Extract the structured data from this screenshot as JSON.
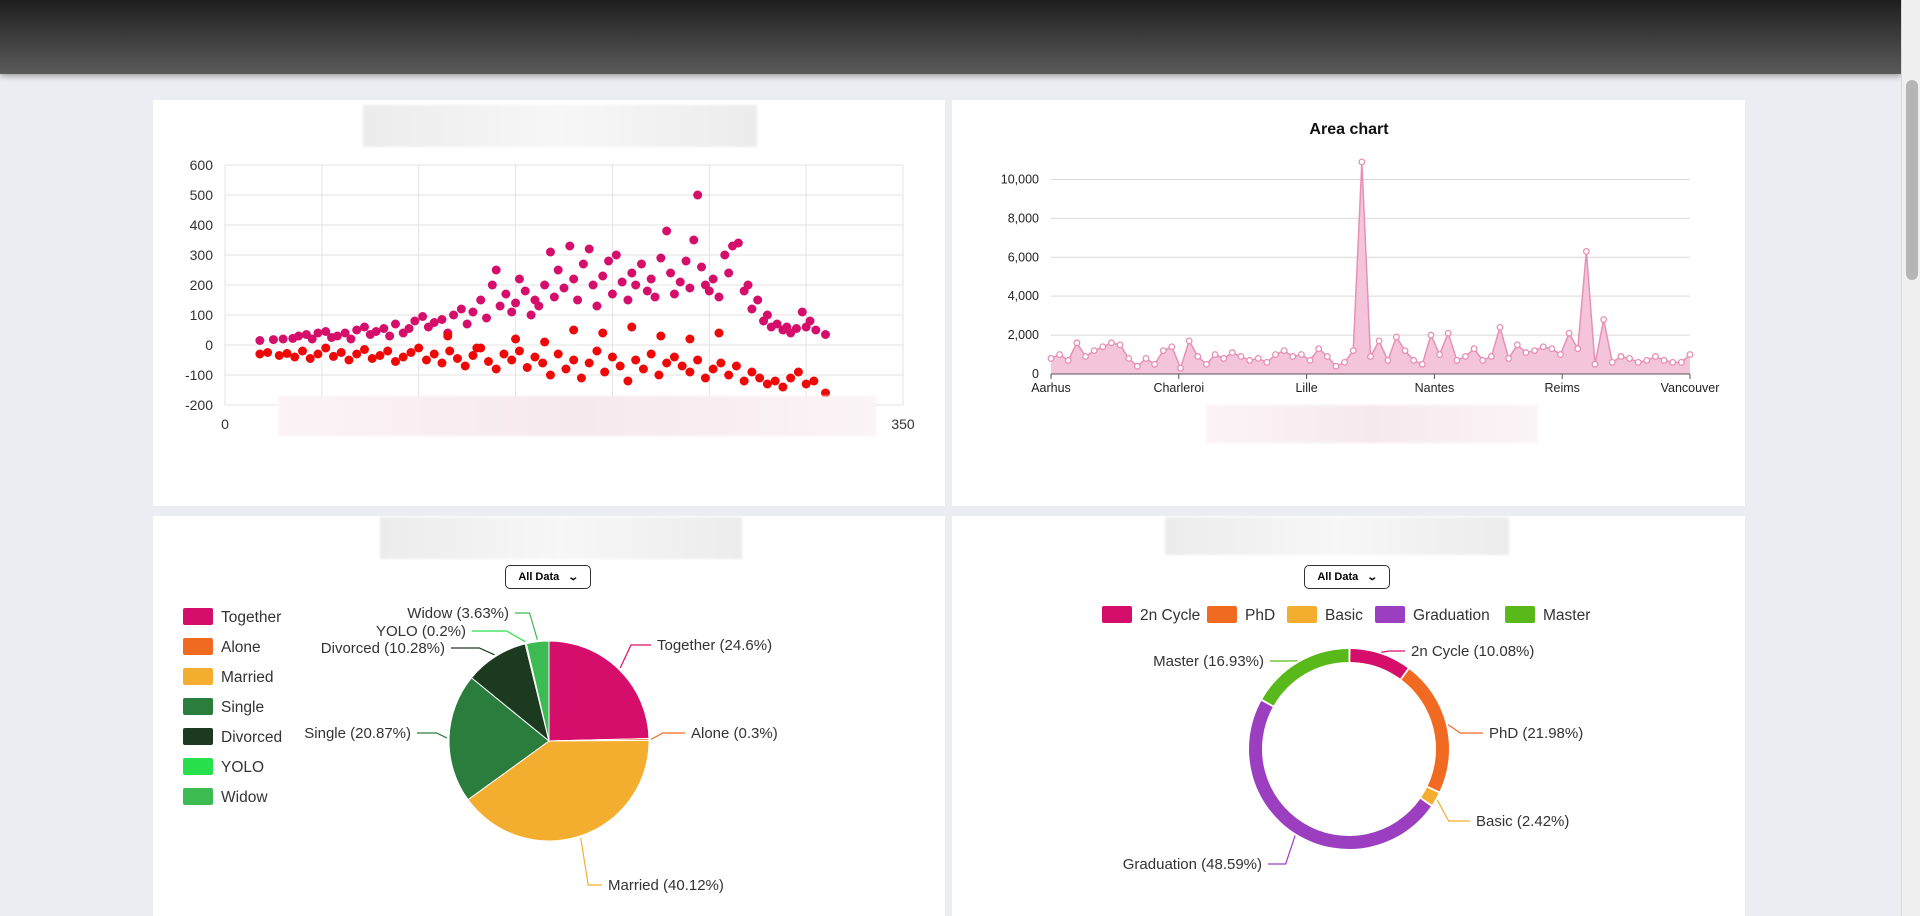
{
  "scatter": {
    "chart_data": {
      "type": "scatter",
      "title": "",
      "xlim": [
        0,
        350
      ],
      "ylim": [
        -200,
        600
      ],
      "x_ticks": [
        "0",
        "50",
        "100",
        "150",
        "200",
        "250",
        "300",
        "350"
      ],
      "y_ticks": [
        "600",
        "500",
        "400",
        "300",
        "200",
        "100",
        "0",
        "-100",
        "-200"
      ],
      "grid": true,
      "series": [
        {
          "color": "#d60e6b",
          "points": [
            [
              18,
              15
            ],
            [
              25,
              18
            ],
            [
              30,
              20
            ],
            [
              35,
              22
            ],
            [
              38,
              30
            ],
            [
              42,
              35
            ],
            [
              45,
              20
            ],
            [
              48,
              40
            ],
            [
              52,
              45
            ],
            [
              55,
              25
            ],
            [
              58,
              30
            ],
            [
              62,
              40
            ],
            [
              65,
              20
            ],
            [
              68,
              50
            ],
            [
              72,
              60
            ],
            [
              75,
              35
            ],
            [
              78,
              45
            ],
            [
              82,
              55
            ],
            [
              85,
              30
            ],
            [
              88,
              70
            ],
            [
              92,
              40
            ],
            [
              95,
              55
            ],
            [
              98,
              80
            ],
            [
              102,
              95
            ],
            [
              105,
              60
            ],
            [
              108,
              75
            ],
            [
              112,
              85
            ],
            [
              115,
              40
            ],
            [
              118,
              100
            ],
            [
              122,
              120
            ],
            [
              125,
              70
            ],
            [
              128,
              110
            ],
            [
              132,
              150
            ],
            [
              135,
              90
            ],
            [
              138,
              200
            ],
            [
              140,
              250
            ],
            [
              142,
              130
            ],
            [
              145,
              170
            ],
            [
              148,
              110
            ],
            [
              150,
              140
            ],
            [
              152,
              220
            ],
            [
              155,
              180
            ],
            [
              158,
              100
            ],
            [
              160,
              150
            ],
            [
              162,
              130
            ],
            [
              165,
              200
            ],
            [
              168,
              310
            ],
            [
              170,
              160
            ],
            [
              172,
              250
            ],
            [
              175,
              190
            ],
            [
              178,
              330
            ],
            [
              180,
              220
            ],
            [
              182,
              150
            ],
            [
              185,
              270
            ],
            [
              188,
              320
            ],
            [
              190,
              200
            ],
            [
              192,
              130
            ],
            [
              195,
              230
            ],
            [
              198,
              280
            ],
            [
              200,
              170
            ],
            [
              202,
              300
            ],
            [
              205,
              210
            ],
            [
              208,
              150
            ],
            [
              210,
              240
            ],
            [
              212,
              200
            ],
            [
              215,
              270
            ],
            [
              218,
              180
            ],
            [
              220,
              220
            ],
            [
              222,
              160
            ],
            [
              225,
              290
            ],
            [
              228,
              380
            ],
            [
              230,
              240
            ],
            [
              232,
              170
            ],
            [
              235,
              210
            ],
            [
              238,
              280
            ],
            [
              240,
              190
            ],
            [
              242,
              350
            ],
            [
              244,
              500
            ],
            [
              246,
              260
            ],
            [
              248,
              200
            ],
            [
              250,
              180
            ],
            [
              252,
              220
            ],
            [
              255,
              160
            ],
            [
              258,
              300
            ],
            [
              260,
              240
            ],
            [
              262,
              330
            ],
            [
              265,
              340
            ],
            [
              268,
              180
            ],
            [
              270,
              200
            ],
            [
              272,
              120
            ],
            [
              275,
              150
            ],
            [
              278,
              80
            ],
            [
              280,
              100
            ],
            [
              282,
              60
            ],
            [
              285,
              70
            ],
            [
              288,
              50
            ],
            [
              290,
              60
            ],
            [
              292,
              40
            ],
            [
              295,
              55
            ],
            [
              298,
              110
            ],
            [
              300,
              60
            ],
            [
              302,
              80
            ],
            [
              305,
              50
            ],
            [
              310,
              35
            ]
          ]
        },
        {
          "color": "#ef0808",
          "points": [
            [
              18,
              -30
            ],
            [
              22,
              -25
            ],
            [
              28,
              -35
            ],
            [
              32,
              -28
            ],
            [
              36,
              -40
            ],
            [
              40,
              -20
            ],
            [
              44,
              -45
            ],
            [
              48,
              -30
            ],
            [
              52,
              -10
            ],
            [
              56,
              -38
            ],
            [
              60,
              -25
            ],
            [
              64,
              -50
            ],
            [
              68,
              -30
            ],
            [
              72,
              -15
            ],
            [
              76,
              -45
            ],
            [
              80,
              -35
            ],
            [
              84,
              -20
            ],
            [
              88,
              -55
            ],
            [
              92,
              -40
            ],
            [
              96,
              -25
            ],
            [
              100,
              -10
            ],
            [
              104,
              -50
            ],
            [
              108,
              -30
            ],
            [
              112,
              -60
            ],
            [
              116,
              -20
            ],
            [
              120,
              -45
            ],
            [
              124,
              -70
            ],
            [
              128,
              -35
            ],
            [
              132,
              -10
            ],
            [
              136,
              -55
            ],
            [
              140,
              -80
            ],
            [
              144,
              -30
            ],
            [
              148,
              -50
            ],
            [
              152,
              -20
            ],
            [
              156,
              -75
            ],
            [
              160,
              -40
            ],
            [
              164,
              -60
            ],
            [
              168,
              -100
            ],
            [
              172,
              -30
            ],
            [
              176,
              -80
            ],
            [
              180,
              -50
            ],
            [
              184,
              -110
            ],
            [
              188,
              -60
            ],
            [
              192,
              -20
            ],
            [
              196,
              -90
            ],
            [
              200,
              -40
            ],
            [
              204,
              -70
            ],
            [
              208,
              -120
            ],
            [
              212,
              -50
            ],
            [
              216,
              -80
            ],
            [
              220,
              -30
            ],
            [
              224,
              -100
            ],
            [
              228,
              -60
            ],
            [
              232,
              -40
            ],
            [
              236,
              -70
            ],
            [
              240,
              -90
            ],
            [
              244,
              -50
            ],
            [
              248,
              -110
            ],
            [
              252,
              -80
            ],
            [
              256,
              -60
            ],
            [
              260,
              -100
            ],
            [
              264,
              -70
            ],
            [
              268,
              -120
            ],
            [
              272,
              -90
            ],
            [
              276,
              -110
            ],
            [
              280,
              -130
            ],
            [
              284,
              -120
            ],
            [
              288,
              -140
            ],
            [
              292,
              -110
            ],
            [
              296,
              -90
            ],
            [
              300,
              -130
            ],
            [
              304,
              -120
            ],
            [
              310,
              -160
            ],
            [
              195,
              40
            ],
            [
              210,
              60
            ],
            [
              225,
              30
            ],
            [
              240,
              20
            ],
            [
              255,
              40
            ],
            [
              150,
              20
            ],
            [
              165,
              10
            ],
            [
              180,
              50
            ],
            [
              130,
              -10
            ],
            [
              115,
              30
            ]
          ]
        }
      ]
    }
  },
  "area": {
    "chart_data": {
      "type": "area",
      "title": "Area chart",
      "color": "#e790b7",
      "x_tick_labels": [
        "Aarhus",
        "Charleroi",
        "Lille",
        "Nantes",
        "Reims",
        "Vancouver"
      ],
      "y_ticks": [
        "10,000",
        "8,000",
        "6,000",
        "4,000",
        "2,000",
        "0"
      ],
      "ylim": [
        0,
        11000
      ],
      "grid": true,
      "values": [
        800,
        1000,
        700,
        1600,
        900,
        1200,
        1400,
        1600,
        1500,
        800,
        400,
        800,
        500,
        1200,
        1400,
        300,
        1700,
        900,
        500,
        1000,
        800,
        1100,
        900,
        700,
        800,
        600,
        1000,
        1200,
        900,
        1000,
        700,
        1300,
        900,
        400,
        600,
        1200,
        10900,
        900,
        1700,
        700,
        1900,
        1200,
        700,
        500,
        2000,
        1000,
        2100,
        700,
        900,
        1300,
        700,
        900,
        2400,
        800,
        1500,
        1100,
        1200,
        1400,
        1300,
        1000,
        2100,
        1300,
        6300,
        500,
        2800,
        600,
        900,
        800,
        600,
        700,
        900,
        700,
        600,
        600,
        1000
      ]
    }
  },
  "marital_pie": {
    "dropdown_label": "All Data",
    "chart_data": {
      "type": "pie",
      "legend_position": "left",
      "slices": [
        {
          "label": "Together",
          "value": 24.6,
          "display": "Together (24.6%)",
          "color": "#d60e6b"
        },
        {
          "label": "Alone",
          "value": 0.3,
          "display": "Alone (0.3%)",
          "color": "#f06a21"
        },
        {
          "label": "Married",
          "value": 40.12,
          "display": "Married (40.12%)",
          "color": "#f4ae2f"
        },
        {
          "label": "Single",
          "value": 20.87,
          "display": "Single (20.87%)",
          "color": "#2a7d3c"
        },
        {
          "label": "Divorced",
          "value": 10.28,
          "display": "Divorced (10.28%)",
          "color": "#1c3a1f"
        },
        {
          "label": "YOLO",
          "value": 0.2,
          "display": "YOLO (0.2%)",
          "color": "#28e04c"
        },
        {
          "label": "Widow",
          "value": 3.63,
          "display": "Widow (3.63%)",
          "color": "#3cbb52"
        }
      ]
    }
  },
  "education_donut": {
    "dropdown_label": "All Data",
    "chart_data": {
      "type": "pie",
      "legend_position": "top",
      "slices": [
        {
          "label": "2n Cycle",
          "value": 10.08,
          "display": "2n Cycle (10.08%)",
          "color": "#d60e6b"
        },
        {
          "label": "PhD",
          "value": 21.98,
          "display": "PhD (21.98%)",
          "color": "#f06a21"
        },
        {
          "label": "Basic",
          "value": 2.42,
          "display": "Basic (2.42%)",
          "color": "#f4ae2f"
        },
        {
          "label": "Graduation",
          "value": 48.59,
          "display": "Graduation (48.59%)",
          "color": "#9b3fc0"
        },
        {
          "label": "Master",
          "value": 16.93,
          "display": "Master (16.93%)",
          "color": "#5ab91a"
        }
      ]
    }
  }
}
